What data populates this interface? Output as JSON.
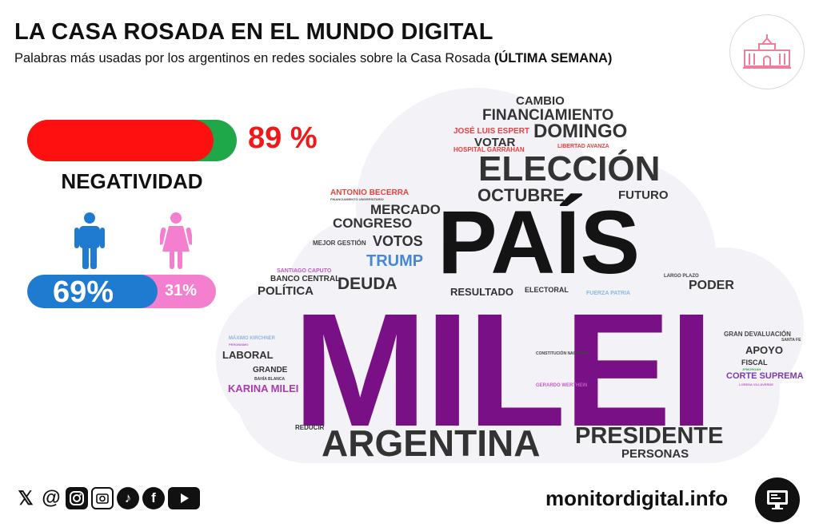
{
  "header": {
    "title": "LA CASA ROSADA EN EL MUNDO DIGITAL",
    "subtitle": "Palabras más usadas por los argentinos en redes sociales sobre la Casa Rosada",
    "subtitle_bold": "(ÚLTIMA SEMANA)"
  },
  "negativity": {
    "percent_text": "89 %",
    "fraction": 0.89,
    "label": "NEGATIVIDAD"
  },
  "gender": {
    "male_text": "69%",
    "female_text": "31%",
    "male_fraction": 0.69
  },
  "words": {
    "milei": "MILEI",
    "pais": "PAÍS",
    "eleccion": "ELECCIÓN",
    "argentina": "ARGENTINA",
    "presidente": "PRESIDENTE",
    "personas": "PERSONAS",
    "cambio": "CAMBIO",
    "financiamiento": "FINANCIAMIENTO",
    "domingo": "DOMINGO",
    "jose_luis_espert": "JOSÉ LUIS ESPERT",
    "votar": "VOTAR",
    "hospital_garrahan": "HOSPITAL GARRAHAN",
    "libertad_avanza": "LIBERTAD AVANZA",
    "antonio_becerra": "ANTONIO BECERRA",
    "financiamiento_universitario": "FINANCIAMIENTO UNIVERSITARIO",
    "octubre": "OCTUBRE",
    "futuro": "FUTURO",
    "mercado": "MERCADO",
    "congreso": "CONGRESO",
    "mejor_gestion": "MEJOR GESTIÓN",
    "votos": "VOTOS",
    "trump": "TRUMP",
    "santiago_caputo": "SANTIAGO CAPUTO",
    "banco_central": "BANCO CENTRAL",
    "politica": "POLÍTICA",
    "deuda": "DEUDA",
    "resultado": "RESULTADO",
    "electoral": "ELECTORAL",
    "fuerza_patria": "FUERZA PATRIA",
    "largo_plazo": "LARGO PLAZO",
    "poder": "PODER",
    "maximo_kirchner": "MÁXIMO KIRCHNER",
    "peronismo": "PERONISMO",
    "laboral": "LABORAL",
    "grande": "GRANDE",
    "bahia_blanca": "BAHÍA BLANCA",
    "karina_milei": "KARINA MILEI",
    "constitucion_nacional": "CONSTITUCIÓN NACIONAL",
    "gerardo_werthein": "GERARDO WERTHEIN",
    "gran_devaluacion": "GRAN DEVALUACIÓN",
    "santa_fe": "SANTA FE",
    "apoyo": "APOYO",
    "fiscal": "FISCAL",
    "jpmorgan": "JPMORGAN",
    "corte_suprema": "CORTE SUPREMA",
    "lorena_villaverde": "LORENA VILLAVERDE",
    "reducir": "REDUCIR"
  },
  "footer": {
    "site": "monitordigital.info",
    "social_icons": [
      "x-icon",
      "threads-icon",
      "instagram-icon",
      "camera-icon",
      "tiktok-icon",
      "facebook-icon",
      "youtube-icon"
    ]
  },
  "colors": {
    "negative": "#ff1010",
    "positive": "#1fa84a",
    "male": "#1f7bcf",
    "female": "#f47fcf",
    "milei": "#7a1085"
  }
}
